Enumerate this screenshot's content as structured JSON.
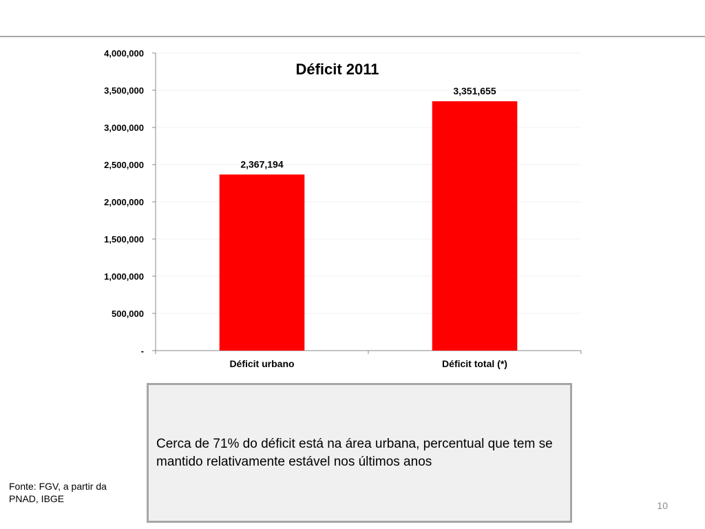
{
  "chart_data": {
    "type": "bar",
    "title": "Déficit 2011",
    "categories": [
      "Déficit urbano",
      "Déficit total  (*)"
    ],
    "values": [
      2367194,
      3351655
    ],
    "value_labels": [
      "2,367,194",
      "3,351,655"
    ],
    "ylim": [
      0,
      4000000
    ],
    "yticks": [
      0,
      500000,
      1000000,
      1500000,
      2000000,
      2500000,
      3000000,
      3500000,
      4000000
    ],
    "ytick_labels": [
      "-",
      "500,000",
      "1,000,000",
      "1,500,000",
      "2,000,000",
      "2,500,000",
      "3,000,000",
      "3,500,000",
      "4,000,000"
    ],
    "grid": true,
    "bar_color": "#ff0000",
    "xlabel": "",
    "ylabel": ""
  },
  "note": {
    "text": "Cerca de 71% do déficit está na área urbana, percentual que tem se mantido relativamente estável nos últimos anos"
  },
  "source": "Fonte: FGV, a partir da PNAD, IBGE",
  "page_number": "10"
}
